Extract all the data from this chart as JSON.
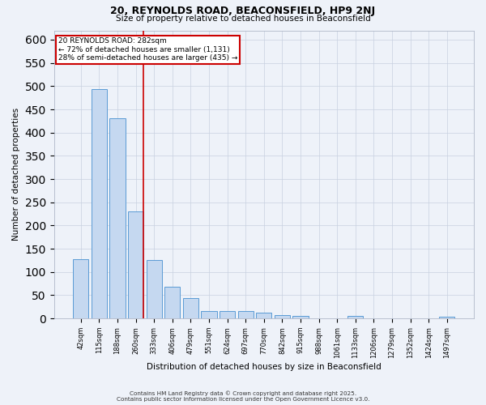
{
  "title1": "20, REYNOLDS ROAD, BEACONSFIELD, HP9 2NJ",
  "title2": "Size of property relative to detached houses in Beaconsfield",
  "xlabel": "Distribution of detached houses by size in Beaconsfield",
  "ylabel": "Number of detached properties",
  "categories": [
    "42sqm",
    "115sqm",
    "188sqm",
    "260sqm",
    "333sqm",
    "406sqm",
    "479sqm",
    "551sqm",
    "624sqm",
    "697sqm",
    "770sqm",
    "842sqm",
    "915sqm",
    "988sqm",
    "1061sqm",
    "1133sqm",
    "1206sqm",
    "1279sqm",
    "1352sqm",
    "1424sqm",
    "1497sqm"
  ],
  "values": [
    128,
    493,
    430,
    230,
    125,
    68,
    44,
    16,
    15,
    16,
    12,
    8,
    5,
    0,
    0,
    5,
    0,
    0,
    0,
    0,
    4
  ],
  "bar_color": "#c5d8f0",
  "bar_edge_color": "#5b9bd5",
  "redline_index": 3,
  "annotation_title": "20 REYNOLDS ROAD: 282sqm",
  "annotation_line1": "← 72% of detached houses are smaller (1,131)",
  "annotation_line2": "28% of semi-detached houses are larger (435) →",
  "annotation_box_color": "#ffffff",
  "annotation_box_edge": "#cc0000",
  "redline_color": "#cc0000",
  "footer1": "Contains HM Land Registry data © Crown copyright and database right 2025.",
  "footer2": "Contains public sector information licensed under the Open Government Licence v3.0.",
  "bg_color": "#eef2f9",
  "ylim": [
    0,
    620
  ],
  "yticks": [
    0,
    50,
    100,
    150,
    200,
    250,
    300,
    350,
    400,
    450,
    500,
    550,
    600
  ]
}
